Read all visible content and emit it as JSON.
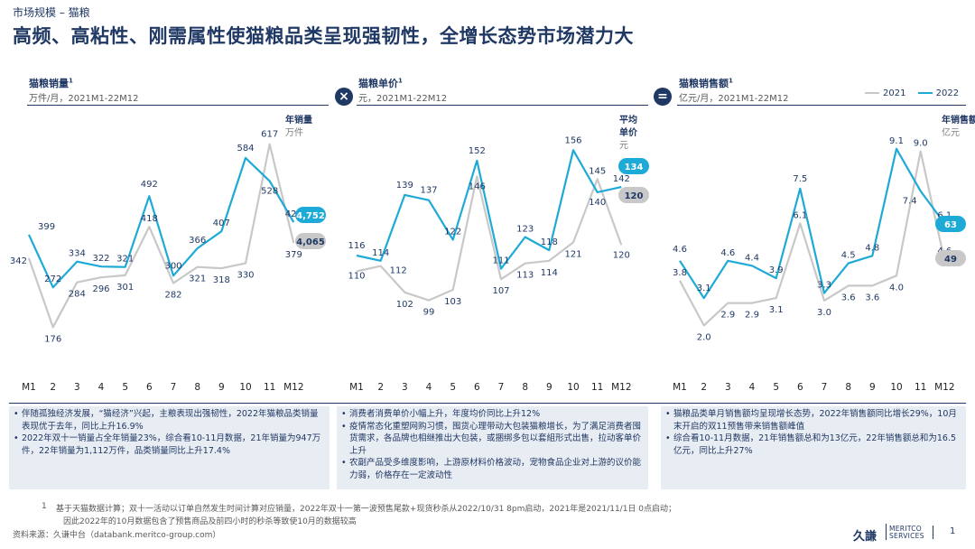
{
  "header": {
    "breadcrumb": "市场规模 – 猫粮",
    "title": "高频、高粘性、刚需属性使猫粮品类呈现强韧性，全增长态势市场潜力大"
  },
  "legend": {
    "y2021": "2021",
    "y2022": "2022"
  },
  "colors": {
    "y2021": "#c8c8c8",
    "y2022": "#1eaad7",
    "navy": "#1f3864"
  },
  "operators": {
    "multiply": "×",
    "equals": "="
  },
  "chart_data": [
    {
      "type": "line",
      "title": "猫粮销量",
      "title_sup": "1",
      "subtitle": "万件/月，2021M1-22M12",
      "categories": [
        "M1",
        "2",
        "3",
        "4",
        "5",
        "6",
        "7",
        "8",
        "9",
        "10",
        "11",
        "M12"
      ],
      "series": [
        {
          "name": "2021",
          "values": [
            342,
            176,
            284,
            296,
            301,
            418,
            282,
            321,
            318,
            330,
            617,
            379
          ],
          "labels": [
            "342",
            "176",
            "284",
            "296",
            "301",
            "418",
            "282",
            "321",
            "318",
            "330",
            "617",
            "379"
          ]
        },
        {
          "name": "2022",
          "values": [
            399,
            272,
            334,
            322,
            321,
            492,
            300,
            366,
            407,
            584,
            528,
            429
          ],
          "labels": [
            "399",
            "272",
            "334",
            "322",
            "321",
            "492",
            "300",
            "366",
            "407",
            "584",
            "528",
            "429"
          ]
        }
      ],
      "ylim": [
        120,
        660
      ],
      "total_label_line1": "年销量",
      "total_label_line2": "万件",
      "total_2022": "4,752",
      "total_2021": "4,065"
    },
    {
      "type": "line",
      "title": "猫粮单价",
      "title_sup": "1",
      "subtitle": "元，2021M1-22M12",
      "categories": [
        "M1",
        "2",
        "3",
        "4",
        "5",
        "6",
        "7",
        "8",
        "9",
        "10",
        "11",
        "M12"
      ],
      "series": [
        {
          "name": "2021",
          "values": [
            110,
            112,
            102,
            99,
            103,
            146,
            107,
            113,
            114,
            121,
            145,
            120
          ],
          "labels": [
            "110",
            "112",
            "102",
            "99",
            "103",
            "146",
            "107",
            "113",
            "114",
            "121",
            "145",
            "120"
          ]
        },
        {
          "name": "2022",
          "values": [
            116,
            114,
            139,
            137,
            122,
            152,
            111,
            123,
            118,
            156,
            140,
            142
          ],
          "labels": [
            "116",
            "114",
            "139",
            "137",
            "122",
            "152",
            "111",
            "123",
            "118",
            "156",
            "140",
            "142"
          ]
        }
      ],
      "ylim": [
        80,
        165
      ],
      "total_label_line1": "平均",
      "total_label_line2": "单价",
      "total_label_line3": "元",
      "total_2022": "134",
      "total_2021": "120"
    },
    {
      "type": "line",
      "title": "猫粮销售额",
      "title_sup": "1",
      "subtitle": "亿元/月，2021M1-22M12",
      "categories": [
        "M1",
        "2",
        "3",
        "4",
        "5",
        "6",
        "7",
        "8",
        "9",
        "10",
        "11",
        "M12"
      ],
      "series": [
        {
          "name": "2021",
          "values": [
            3.8,
            2.0,
            2.9,
            2.9,
            3.1,
            6.1,
            3.0,
            3.6,
            3.6,
            4.0,
            9.0,
            4.6
          ],
          "labels": [
            "3.8",
            "2.0",
            "2.9",
            "2.9",
            "3.1",
            "6.1",
            "3.0",
            "3.6",
            "3.6",
            "4.0",
            "9.0",
            "4.6"
          ]
        },
        {
          "name": "2022",
          "values": [
            4.6,
            3.1,
            4.6,
            4.4,
            3.9,
            7.5,
            3.3,
            4.5,
            4.8,
            9.1,
            7.4,
            6.1
          ],
          "labels": [
            "4.6",
            "3.1",
            "4.6",
            "4.4",
            "3.9",
            "7.5",
            "3.3",
            "4.5",
            "4.8",
            "9.1",
            "7.4",
            "6.1"
          ]
        }
      ],
      "ylim": [
        1.0,
        10.0
      ],
      "total_label_line1": "年销售额",
      "total_label_line2": "亿元",
      "total_2022": "63",
      "total_2021": "49"
    }
  ],
  "notes": [
    [
      "伴随孤独经济发展，“猫经济”兴起，主粮表现出强韧性，2022年猫粮品类销量表现优于去年，同比上升16.9%",
      "2022年双十一销量占全年销量23%，综合看10-11月数据，21年销量为947万件，22年销量为1,112万件，品类销量同比上升17.4%"
    ],
    [
      "消费者消费单价小幅上升，年度均价同比上升12%",
      "疫情常态化重塑网购习惯，囤货心理带动大包装猫粮增长，为了满足消费者囤货需求，各品牌也相继推出大包装，或捆绑多包以套組形式出售，拉动客单价上升",
      "农副产品受多维度影响，上游原材料价格波动，宠物食品企业对上游的议价能力弱，价格存在一定波动性"
    ],
    [
      "猫粮品类单月销售额均呈现增长态势，2022年销售额同比增长29%，10月末开启的双11预售带来销售额峰值",
      "综合看10-11月数据，21年销售额总和为13亿元，22年销售额总和为16.5亿元，同比上升27%"
    ]
  ],
  "footnote": {
    "number": "1",
    "line1": "基于天猫数据计算；双十一活动以订单自然发生时间计算对应销量，2022年双十一第一波预售尾款+现货秒杀从2022/10/31 8pm启动，2021年是2021/11/1日 0点启动；",
    "line2": "因此2022年的10月数据包含了预售商品及前四小时的秒杀等致使10月的数据较高"
  },
  "source": "资料来源：久谦中台（databank.meritco-group.com）",
  "logo": {
    "cn": "久謙",
    "en1": "MERITCO",
    "en2": "SERVICES"
  },
  "page_number": "1"
}
